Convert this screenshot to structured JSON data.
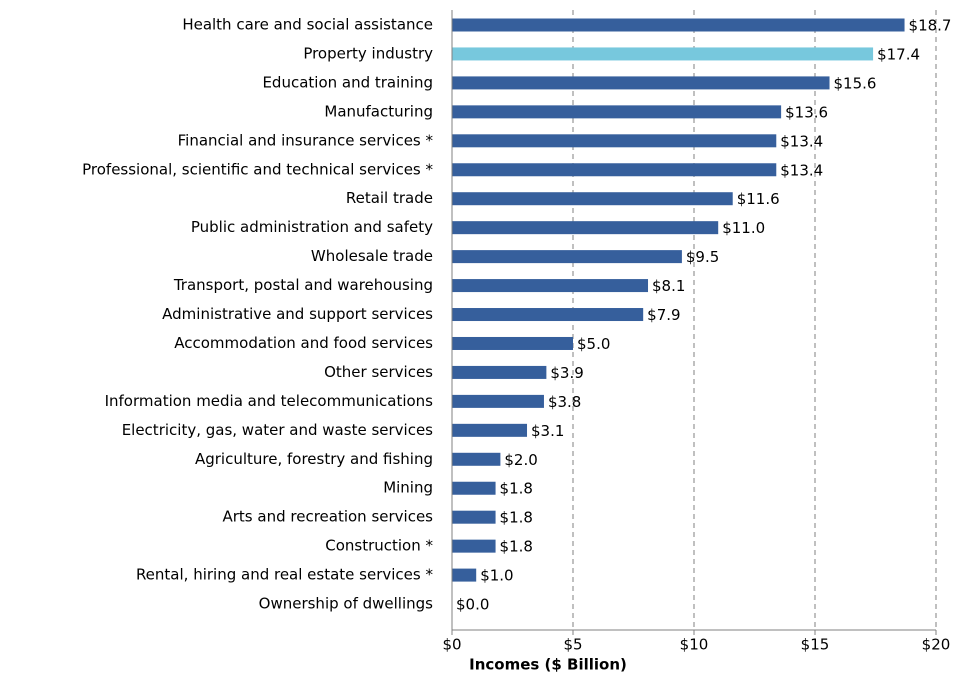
{
  "chart_data": {
    "type": "barh",
    "categories": [
      "Health care and social assistance",
      "Property industry",
      "Education and training",
      "Manufacturing",
      "Financial and insurance services *",
      "Professional, scientific and technical services *",
      "Retail trade",
      "Public administration and safety",
      "Wholesale trade",
      "Transport, postal and warehousing",
      "Administrative and support services",
      "Accommodation and food services",
      "Other services",
      "Information media and telecommunications",
      "Electricity, gas, water and waste services",
      "Agriculture, forestry and fishing",
      "Mining",
      "Arts and recreation services",
      "Construction *",
      "Rental, hiring and real estate services *",
      "Ownership of dwellings"
    ],
    "values": [
      18.7,
      17.4,
      15.6,
      13.6,
      13.4,
      13.4,
      11.6,
      11.0,
      9.5,
      8.1,
      7.9,
      5.0,
      3.9,
      3.8,
      3.1,
      2.0,
      1.8,
      1.8,
      1.8,
      1.0,
      0.0
    ],
    "value_labels": [
      "$18.7",
      "$17.4",
      "$15.6",
      "$13.6",
      "$13.4",
      "$13.4",
      "$11.6",
      "$11.0",
      "$9.5",
      "$8.1",
      "$7.9",
      "$5.0",
      "$3.9",
      "$3.8",
      "$3.1",
      "$2.0",
      "$1.8",
      "$1.8",
      "$1.8",
      "$1.0",
      "$0.0"
    ],
    "colors": [
      "#365f9c",
      "#77c8dd",
      "#365f9c",
      "#365f9c",
      "#365f9c",
      "#365f9c",
      "#365f9c",
      "#365f9c",
      "#365f9c",
      "#365f9c",
      "#365f9c",
      "#365f9c",
      "#365f9c",
      "#365f9c",
      "#365f9c",
      "#365f9c",
      "#365f9c",
      "#365f9c",
      "#365f9c",
      "#365f9c",
      "#365f9c"
    ],
    "xlabel": "Incomes ($ Billion)",
    "xlim": [
      0,
      20
    ],
    "xticks": [
      {
        "value": 0,
        "label": "$0"
      },
      {
        "value": 5,
        "label": "$5"
      },
      {
        "value": 10,
        "label": "$10"
      },
      {
        "value": 15,
        "label": "$15"
      },
      {
        "value": 20,
        "label": "$20"
      }
    ],
    "grid": true
  }
}
